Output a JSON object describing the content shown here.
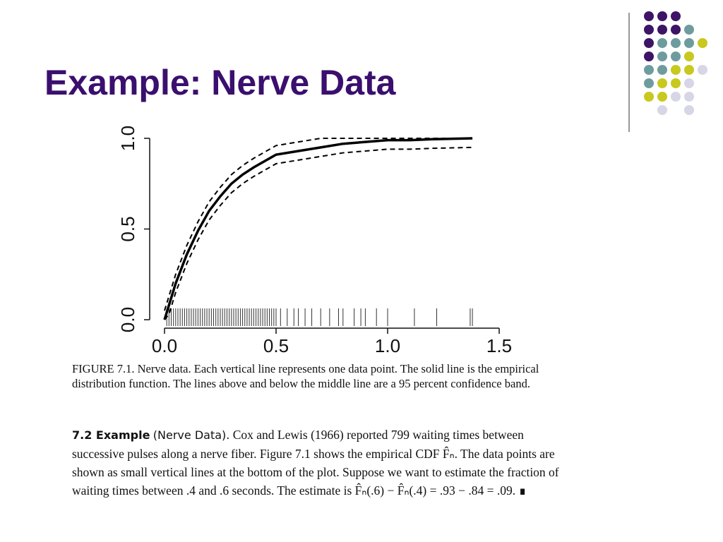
{
  "title": "Example: Nerve Data",
  "chart_data": {
    "type": "line",
    "x": [
      0,
      0.02,
      0.05,
      0.1,
      0.15,
      0.2,
      0.25,
      0.3,
      0.35,
      0.4,
      0.5,
      0.6,
      0.7,
      0.8,
      0.9,
      1.0,
      1.1,
      1.2,
      1.38
    ],
    "series": [
      {
        "color": "#000000",
        "dashed": false,
        "values": [
          0,
          0.08,
          0.2,
          0.36,
          0.49,
          0.6,
          0.68,
          0.75,
          0.8,
          0.84,
          0.91,
          0.93,
          0.95,
          0.97,
          0.98,
          0.99,
          0.99,
          0.995,
          1.0
        ]
      },
      {
        "color": "#000000",
        "dashed": true,
        "values": [
          0.05,
          0.13,
          0.25,
          0.41,
          0.54,
          0.65,
          0.73,
          0.8,
          0.85,
          0.89,
          0.96,
          0.98,
          1.0,
          1.0,
          1.0,
          1.0,
          1.0,
          1.0,
          1.0
        ]
      },
      {
        "color": "#000000",
        "dashed": true,
        "values": [
          0,
          0.03,
          0.15,
          0.31,
          0.44,
          0.55,
          0.63,
          0.7,
          0.75,
          0.79,
          0.86,
          0.88,
          0.9,
          0.92,
          0.93,
          0.94,
          0.94,
          0.945,
          0.95
        ]
      }
    ],
    "rug": [
      0.01,
      0.02,
      0.03,
      0.04,
      0.05,
      0.06,
      0.07,
      0.08,
      0.09,
      0.1,
      0.11,
      0.12,
      0.13,
      0.14,
      0.15,
      0.16,
      0.17,
      0.18,
      0.19,
      0.2,
      0.21,
      0.22,
      0.23,
      0.24,
      0.25,
      0.26,
      0.27,
      0.28,
      0.29,
      0.3,
      0.31,
      0.32,
      0.33,
      0.34,
      0.35,
      0.36,
      0.37,
      0.38,
      0.39,
      0.4,
      0.41,
      0.42,
      0.43,
      0.44,
      0.45,
      0.46,
      0.47,
      0.48,
      0.49,
      0.5,
      0.52,
      0.55,
      0.58,
      0.6,
      0.63,
      0.66,
      0.7,
      0.74,
      0.78,
      0.8,
      0.85,
      0.88,
      0.9,
      0.95,
      1.0,
      1.12,
      1.22,
      1.37,
      1.38
    ],
    "xlim": [
      0,
      1.5
    ],
    "ylim": [
      0,
      1
    ],
    "xticks": [
      {
        "value": 0,
        "label": "0.0"
      },
      {
        "value": 0.5,
        "label": "0.5"
      },
      {
        "value": 1,
        "label": "1.0"
      },
      {
        "value": 1.5,
        "label": "1.5"
      }
    ],
    "yticks": [
      {
        "value": 0,
        "label": "0.0"
      },
      {
        "value": 0.5,
        "label": "0.5"
      },
      {
        "value": 1,
        "label": "1.0"
      }
    ]
  },
  "caption": "FIGURE 7.1. Nerve data. Each vertical line represents one data point. The solid line is the empirical distribution function. The lines above and below the middle line are a 95 percent confidence band.",
  "example": {
    "label": "7.2 Example",
    "name": "(Nerve Data).",
    "text": "Cox and Lewis (1966) reported 799 waiting times between successive pulses along a nerve fiber. Figure 7.1 shows the empirical CDF F̂ₙ. The data points are shown as small vertical lines at the bottom of the plot. Suppose we want to estimate the fraction of waiting times between .4 and .6 seconds. The estimate is F̂ₙ(.6) − F̂ₙ(.4) = .93 − .84 = .09. ∎"
  }
}
